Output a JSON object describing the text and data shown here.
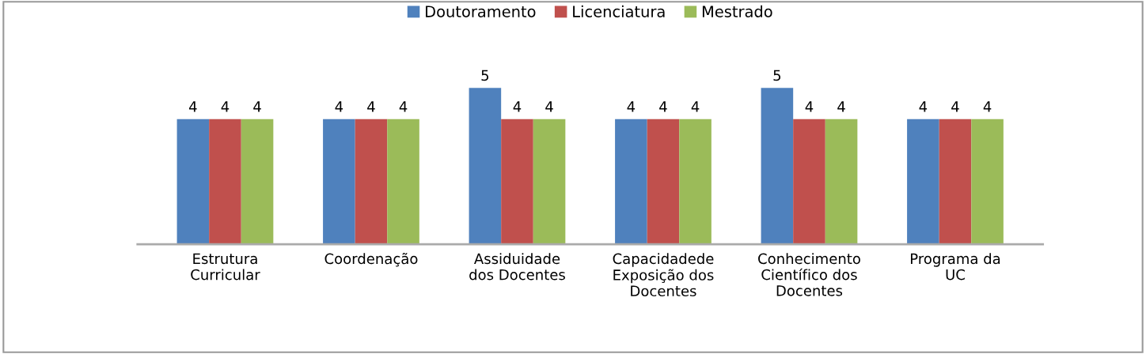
{
  "chart_data": {
    "type": "bar",
    "categories": [
      "Estrutura\nCurricular",
      "Coordenação",
      "Assiduidade\ndos Docentes",
      "Capacidadede\nExposição dos\nDocentes",
      "Conhecimento\nCientífico dos\nDocentes",
      "Programa da\nUC"
    ],
    "series": [
      {
        "name": "Doutoramento",
        "color": "#4f81bd",
        "values": [
          4,
          4,
          5,
          4,
          5,
          4
        ]
      },
      {
        "name": "Licenciatura",
        "color": "#c0504d",
        "values": [
          4,
          4,
          4,
          4,
          4,
          4
        ]
      },
      {
        "name": "Mestrado",
        "color": "#9bbb59",
        "values": [
          4,
          4,
          4,
          4,
          4,
          4
        ]
      }
    ],
    "data_labels": true,
    "legend": "top",
    "grid": false,
    "tick_labels": "x"
  }
}
